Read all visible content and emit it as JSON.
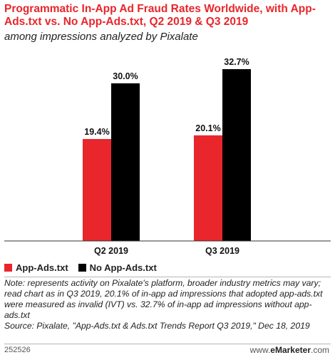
{
  "title": "Programmatic In-App Ad Fraud Rates Worldwide, with App-Ads.txt vs. No App-Ads.txt, Q2 2019 & Q3 2019",
  "subtitle": "among impressions analyzed by Pixalate",
  "chart_data": {
    "type": "bar",
    "categories": [
      "Q2 2019",
      "Q3 2019"
    ],
    "series": [
      {
        "name": "App-Ads.txt",
        "values": [
          19.4,
          20.1
        ],
        "color": "#e8262b"
      },
      {
        "name": "No App-Ads.txt",
        "values": [
          30.0,
          32.7
        ],
        "color": "#000000"
      }
    ],
    "data_labels": [
      [
        "19.4%",
        "20.1%"
      ],
      [
        "30.0%",
        "32.7%"
      ]
    ],
    "ylim": [
      0,
      35
    ],
    "grid": false,
    "legend_position": "bottom-left"
  },
  "legend": [
    {
      "label": "App-Ads.txt",
      "color": "#e8262b"
    },
    {
      "label": "No App-Ads.txt",
      "color": "#000000"
    }
  ],
  "note": "Note: represents activity on Pixalate's platform, broader industry metrics may vary; read chart as in Q3 2019, 20.1% of in-app ad impressions that adopted app-ads.txt were measured as invalid (IVT) vs. 32.7% of in-app ad impressions without app-ads.txt",
  "source": "Source: Pixalate, \"App-Ads.txt & Ads.txt Trends Report Q3 2019,\" Dec 18, 2019",
  "footer": {
    "id": "252526",
    "brand_prefix": "www.",
    "brand_name": "eMarketer",
    "brand_suffix": ".com"
  }
}
